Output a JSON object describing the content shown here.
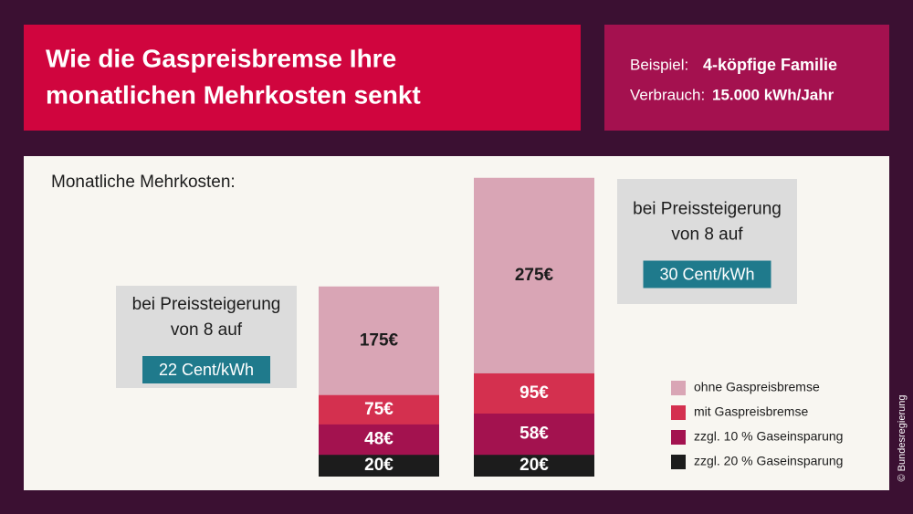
{
  "header": {
    "title": [
      "Wie die Gaspreisbremse Ihre",
      "monatlichen Mehrkosten senkt"
    ],
    "example_label": "Beispiel:",
    "example_value": "4-köpfige Familie",
    "usage_label": "Verbrauch:",
    "usage_value": "15.000 kWh/Jahr"
  },
  "credit": "© Bundesregierung",
  "chart_data": {
    "type": "bar",
    "title": "Monatliche Mehrkosten:",
    "annotations": [
      {
        "lines": [
          "bei Preissteigerung",
          "von 8 auf"
        ],
        "highlight": "22 Cent/kWh"
      },
      {
        "lines": [
          "bei Preissteigerung",
          "von 8 auf"
        ],
        "highlight": "30 Cent/kWh"
      }
    ],
    "series": [
      {
        "name": "ohne Gaspreisbremse",
        "color": "#d9a5b5",
        "values": [
          175,
          275
        ],
        "value_labels": [
          "175€",
          "275€"
        ]
      },
      {
        "name": "mit Gaspreisbremse",
        "color": "#d4304f",
        "values": [
          75,
          95
        ],
        "value_labels": [
          "75€",
          "95€"
        ]
      },
      {
        "name": "zzgl. 10 % Gaseinsparung",
        "color": "#a3124f",
        "values": [
          48,
          58
        ],
        "value_labels": [
          "48€",
          "58€"
        ]
      },
      {
        "name": "zzgl. 20 % Gaseinsparung",
        "color": "#1c1c1c",
        "values": [
          20,
          20
        ],
        "value_labels": [
          "20€",
          "20€"
        ]
      }
    ]
  }
}
